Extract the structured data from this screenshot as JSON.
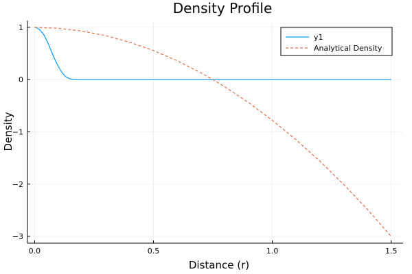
{
  "chart_data": {
    "type": "line",
    "title": "Density Profile",
    "xlabel": "Distance (r)",
    "ylabel": "Density",
    "xlim": [
      -0.03,
      1.55
    ],
    "ylim": [
      -3.13,
      1.13
    ],
    "xticks": [
      0.0,
      0.5,
      1.0,
      1.5
    ],
    "xtick_labels": [
      "0.0",
      "0.5",
      "1.0",
      "1.5"
    ],
    "yticks": [
      1,
      0,
      -1,
      -2,
      -3
    ],
    "ytick_labels": [
      "1",
      "0",
      "−1",
      "−2",
      "−3"
    ],
    "grid": true,
    "legend_position": "top-right",
    "series": [
      {
        "name": "y1",
        "color": "#009AFA",
        "style": "solid",
        "x": [
          0.0,
          0.01,
          0.02,
          0.03,
          0.04,
          0.05,
          0.06,
          0.07,
          0.08,
          0.09,
          0.1,
          0.11,
          0.12,
          0.13,
          0.14,
          0.15,
          0.16,
          0.18,
          0.2,
          0.3,
          0.5,
          0.75,
          1.0,
          1.25,
          1.5
        ],
        "y": [
          1.0,
          0.99,
          0.96,
          0.91,
          0.85,
          0.76,
          0.66,
          0.55,
          0.44,
          0.34,
          0.25,
          0.17,
          0.11,
          0.06,
          0.03,
          0.015,
          0.006,
          0.001,
          0.0,
          0.0,
          0.0,
          0.0,
          0.0,
          0.0,
          0.0
        ]
      },
      {
        "name": "Analytical Density",
        "color": "#E26F46",
        "style": "dashed",
        "x": [
          0.0,
          0.1,
          0.2,
          0.3,
          0.4,
          0.5,
          0.6,
          0.7,
          0.75,
          0.8,
          0.9,
          1.0,
          1.1,
          1.2,
          1.3,
          1.4,
          1.5
        ],
        "y": [
          1.0,
          0.982,
          0.929,
          0.84,
          0.716,
          0.556,
          0.36,
          0.129,
          0.0,
          -0.138,
          -0.44,
          -0.778,
          -1.151,
          -1.56,
          -2.004,
          -2.484,
          -3.0
        ]
      }
    ]
  }
}
